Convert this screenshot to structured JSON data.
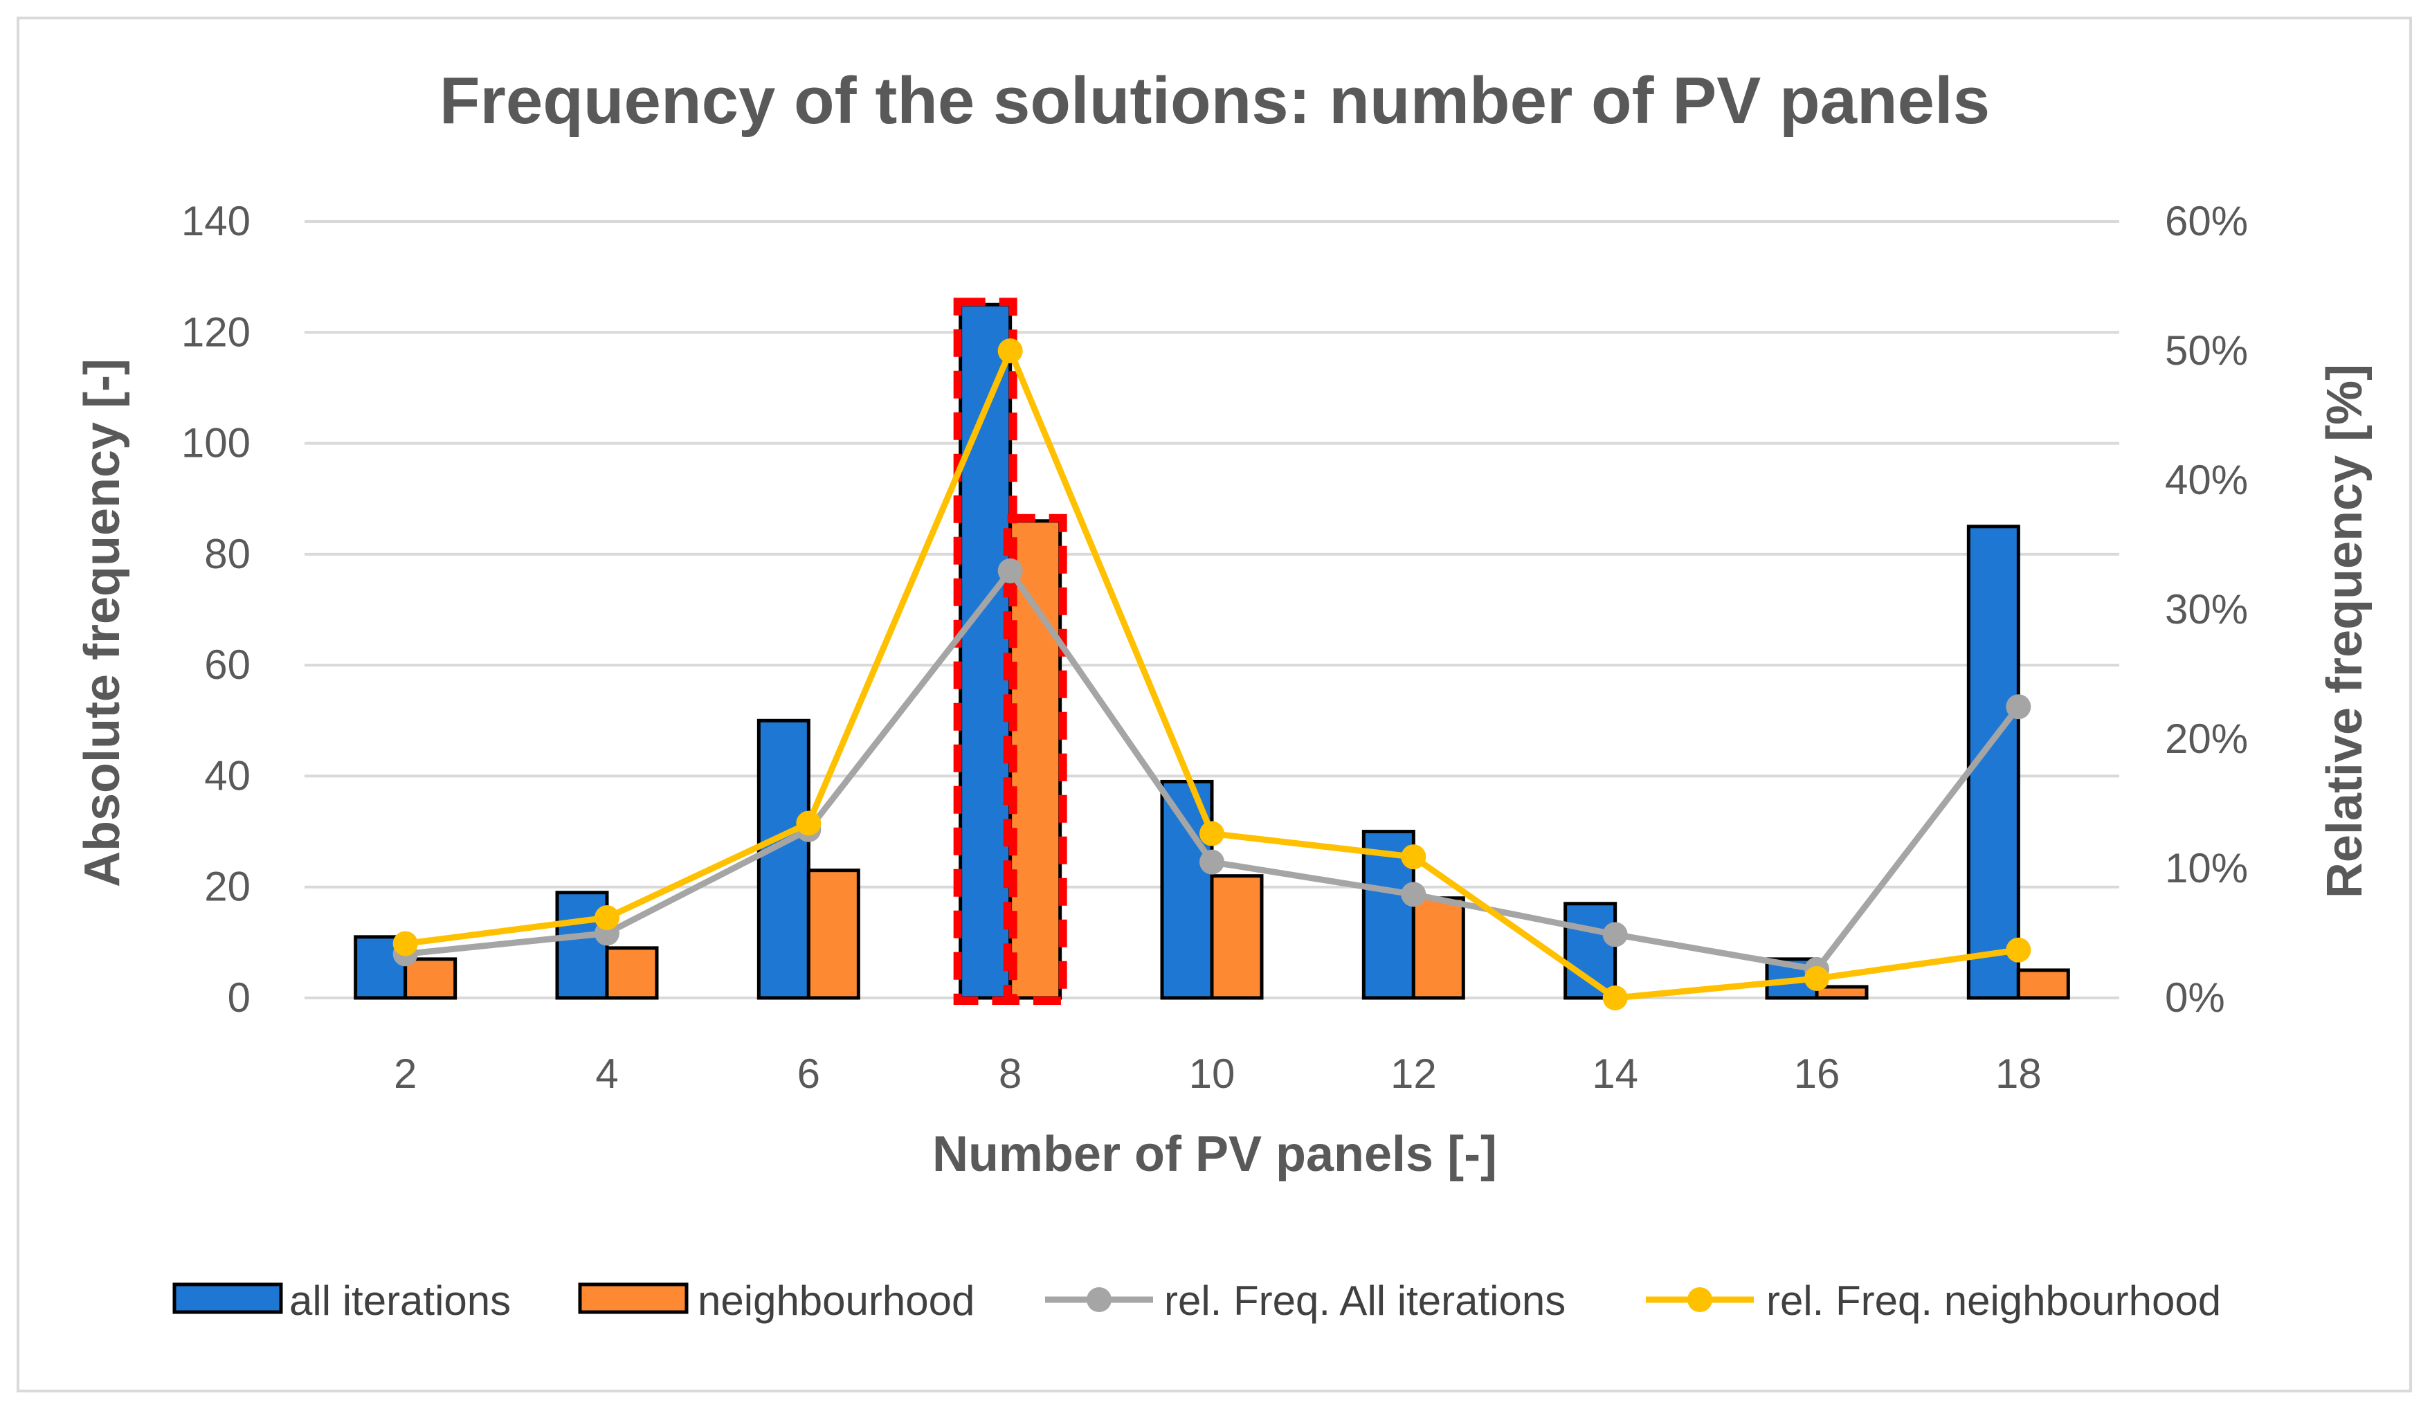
{
  "chart_data": {
    "type": "bar",
    "title": "Frequency of the solutions: number of PV panels",
    "xlabel": "Number of PV panels [-]",
    "ylabel": "Absolute frequency [-]",
    "y2label": "Relative frequency [%]",
    "ylim": [
      0,
      140
    ],
    "y2lim": [
      0,
      0.6
    ],
    "yticks": [
      "0",
      "20",
      "40",
      "60",
      "80",
      "100",
      "120",
      "140"
    ],
    "y2ticks": [
      "0%",
      "10%",
      "20%",
      "30%",
      "40%",
      "50%",
      "60%"
    ],
    "categories": [
      "2",
      "4",
      "6",
      "8",
      "10",
      "12",
      "14",
      "16",
      "18"
    ],
    "grid": true,
    "legend_position": "bottom",
    "series": [
      {
        "name": "all iterations",
        "kind": "bar",
        "axis": "left",
        "color": "#1f77d4",
        "values": [
          11,
          19,
          50,
          125,
          39,
          30,
          17,
          7,
          85
        ]
      },
      {
        "name": "neighbourhood",
        "kind": "bar",
        "axis": "left",
        "color": "#fd8a33",
        "values": [
          7,
          9,
          23,
          86,
          22,
          18,
          0,
          2,
          5
        ]
      },
      {
        "name": "rel. Freq. All iterations",
        "kind": "line",
        "axis": "right",
        "color": "#a5a5a5",
        "values": [
          0.034,
          0.05,
          0.13,
          0.33,
          0.105,
          0.08,
          0.049,
          0.022,
          0.225
        ]
      },
      {
        "name": "rel. Freq. neighbourhood",
        "kind": "line",
        "axis": "right",
        "color": "#ffc000",
        "values": [
          0.042,
          0.062,
          0.135,
          0.5,
          0.127,
          0.109,
          0.0,
          0.015,
          0.037
        ]
      }
    ],
    "annotations": [
      {
        "kind": "highlight-box",
        "category": "8",
        "style": "dashed",
        "color": "#ff0000"
      }
    ]
  }
}
